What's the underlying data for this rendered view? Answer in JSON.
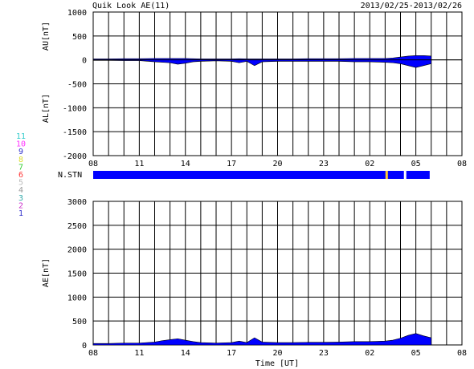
{
  "header": {
    "title": "Quik Look AE(11)",
    "date_range": "2013/02/25-2013/02/26"
  },
  "stations_legend": [
    {
      "label": "11",
      "color": "#33cccc"
    },
    {
      "label": "10",
      "color": "#ff33ff"
    },
    {
      "label": "9",
      "color": "#3333cc"
    },
    {
      "label": "8",
      "color": "#dddd33"
    },
    {
      "label": "7",
      "color": "#33cc33"
    },
    {
      "label": "6",
      "color": "#ff3333"
    },
    {
      "label": "5",
      "color": "#bbbbbb"
    },
    {
      "label": "4",
      "color": "#999999"
    },
    {
      "label": "3",
      "color": "#33aaaa"
    },
    {
      "label": "2",
      "color": "#cc33cc"
    },
    {
      "label": "1",
      "color": "#3333cc"
    }
  ],
  "chart_data": [
    {
      "type": "area",
      "ylabel_top": "AU[nT]",
      "ylabel_bottom": "AL[nT]",
      "ylim": [
        -2000,
        1000
      ],
      "yticks": [
        1000,
        500,
        0,
        -500,
        -1000,
        -1500,
        -2000
      ],
      "xlim_hours": [
        8,
        32
      ],
      "xtick_labels": [
        "08",
        "11",
        "14",
        "17",
        "20",
        "23",
        "02",
        "05",
        "08"
      ],
      "grid": true,
      "fill_color": "#0000ff",
      "series": [
        {
          "values_hours": [
            8,
            9,
            10,
            11,
            12,
            13,
            13.5,
            14,
            14.5,
            15,
            16,
            17,
            17.5,
            18,
            18.5,
            19,
            20,
            21,
            22,
            23,
            24,
            25,
            26,
            27,
            27.5,
            28,
            28.5,
            29,
            29.5,
            30
          ],
          "au": [
            20,
            20,
            25,
            25,
            30,
            30,
            30,
            30,
            25,
            20,
            20,
            20,
            25,
            20,
            20,
            20,
            20,
            20,
            25,
            25,
            25,
            30,
            30,
            30,
            40,
            60,
            80,
            90,
            90,
            80
          ],
          "al": [
            -10,
            -10,
            -15,
            -15,
            -40,
            -60,
            -90,
            -70,
            -40,
            -30,
            -20,
            -30,
            -60,
            -30,
            -120,
            -40,
            -30,
            -30,
            -30,
            -30,
            -30,
            -40,
            -40,
            -50,
            -60,
            -80,
            -120,
            -160,
            -120,
            -80
          ]
        }
      ]
    },
    {
      "type": "bar",
      "label": "N.STN",
      "xlim_hours": [
        8,
        32
      ],
      "data_end_hour": 29.9,
      "bar_color": "#0000ff",
      "markers": [
        {
          "hour": 27.1,
          "color": "#ffcc33"
        },
        {
          "hour": 28.3,
          "color": "#ffffff"
        }
      ]
    },
    {
      "type": "area",
      "ylabel": "AE[nT]",
      "xlabel": "Time [UT]",
      "ylim": [
        0,
        3000
      ],
      "yticks": [
        3000,
        2500,
        2000,
        1500,
        1000,
        500,
        0
      ],
      "xlim_hours": [
        8,
        32
      ],
      "xtick_labels": [
        "08",
        "11",
        "14",
        "17",
        "20",
        "23",
        "02",
        "05",
        "08"
      ],
      "grid": true,
      "fill_color": "#0000ff",
      "series": [
        {
          "values_hours": [
            8,
            9,
            10,
            11,
            12,
            12.5,
            13,
            13.5,
            14,
            14.5,
            15,
            16,
            17,
            17.5,
            18,
            18.5,
            19,
            20,
            21,
            22,
            23,
            24,
            25,
            26,
            27,
            27.5,
            28,
            28.5,
            29,
            29.5,
            30
          ],
          "ae": [
            30,
            30,
            40,
            40,
            60,
            90,
            110,
            130,
            100,
            70,
            50,
            40,
            50,
            80,
            50,
            150,
            60,
            50,
            50,
            55,
            55,
            60,
            70,
            70,
            80,
            100,
            140,
            200,
            240,
            190,
            150
          ]
        }
      ]
    }
  ]
}
